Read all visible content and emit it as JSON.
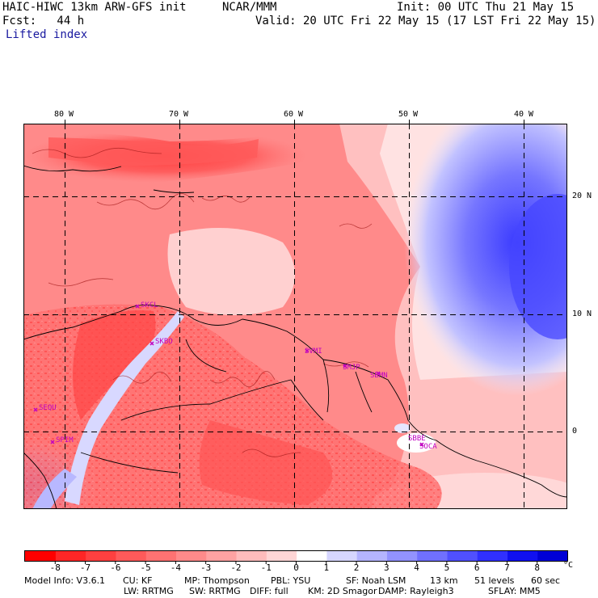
{
  "header": {
    "model": "HAIC-HIWC 13km ARW-GFS init",
    "org": "NCAR/MMM",
    "init": "Init: 00 UTC Thu 21 May 15",
    "fcst": "Fcst:   44 h",
    "valid": "Valid: 20 UTC Fri 22 May 15 (17 LST Fri 22 May 15)",
    "field": "Lifted index"
  },
  "axes": {
    "lon_labels": [
      "80 W",
      "70 W",
      "60 W",
      "50 W",
      "40 W"
    ],
    "lat_labels": [
      "20 N",
      "10 N",
      "0"
    ]
  },
  "stations": [
    "SKCL",
    "SKBO",
    "SEQU",
    "SPIM",
    "SVMI",
    "SMJP",
    "SBMN",
    "SOCA",
    "SBBE"
  ],
  "colorbar": {
    "levels": [
      "-8",
      "-7",
      "-6",
      "-5",
      "-4",
      "-3",
      "-2",
      "-1",
      "0",
      "1",
      "2",
      "3",
      "4",
      "5",
      "6",
      "7",
      "8"
    ],
    "unit": "°C",
    "colors": [
      "#ff0000",
      "#ff2626",
      "#ff4040",
      "#ff5a5a",
      "#ff7272",
      "#ff8a8a",
      "#ffa2a2",
      "#ffbcbc",
      "#ffd6d6",
      "#ffffff",
      "#d6d6ff",
      "#b4b4ff",
      "#9292ff",
      "#7070ff",
      "#5050ff",
      "#3030ff",
      "#1010f0",
      "#0000d6"
    ]
  },
  "footer": {
    "line1": [
      "Model Info: V3.6.1",
      "CU: KF",
      "MP: Thompson",
      "PBL: YSU",
      "SF: Noah LSM",
      "13 km",
      "51 levels",
      "60 sec"
    ],
    "line2": [
      "LW: RRTMG",
      "SW: RRTMG",
      "DIFF: full",
      "KM: 2D Smagor",
      "DAMP: Rayleigh3",
      "SFLAY: MM5"
    ]
  }
}
